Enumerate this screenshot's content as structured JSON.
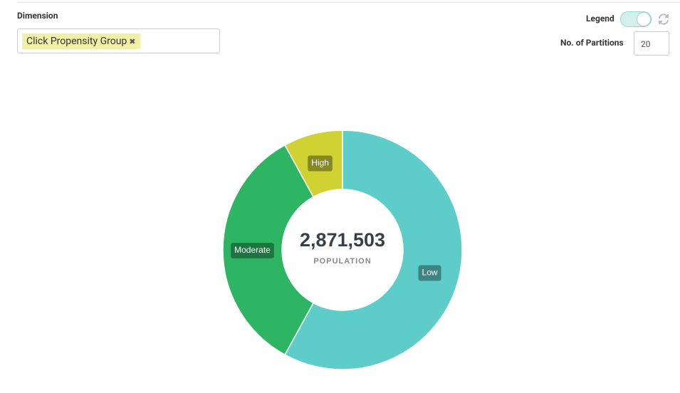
{
  "controls": {
    "dimension_label": "Dimension",
    "selected_dimension": "Click Propensity Group",
    "legend_label": "Legend",
    "partitions_label": "No. of Partitions",
    "partitions_value": "20"
  },
  "chart_data": {
    "type": "donut",
    "categories": [
      "Low",
      "Moderate",
      "High"
    ],
    "values": [
      58,
      34,
      8
    ],
    "colors": [
      "#5ecdc9",
      "#2db563",
      "#cfd232"
    ],
    "center_value": "2,871,503",
    "center_label": "POPULATION"
  }
}
